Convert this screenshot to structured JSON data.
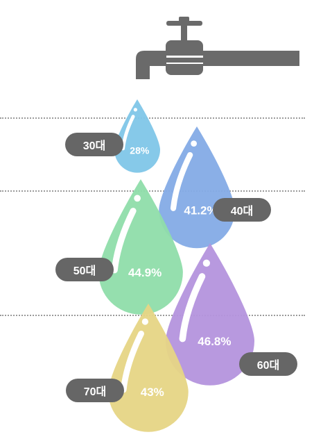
{
  "colors": {
    "faucet": "#6a6a6a",
    "pill": "#666666",
    "grid": "#9a9a9a"
  },
  "chart_data": {
    "type": "bar",
    "categories": [
      "30대",
      "40대",
      "50대",
      "60대",
      "70대"
    ],
    "values": [
      28,
      41.2,
      44.9,
      46.8,
      43
    ],
    "value_labels": [
      "28%",
      "41.2%",
      "44.9%",
      "46.8%",
      "43%"
    ],
    "unit": "%",
    "title": "",
    "xlabel": "",
    "ylabel": "",
    "series_colors": [
      "#7fc6e8",
      "#84abe6",
      "#8fddaa",
      "#b493dd",
      "#e6d585"
    ],
    "icon": "water-faucet-icon",
    "grid": true
  }
}
